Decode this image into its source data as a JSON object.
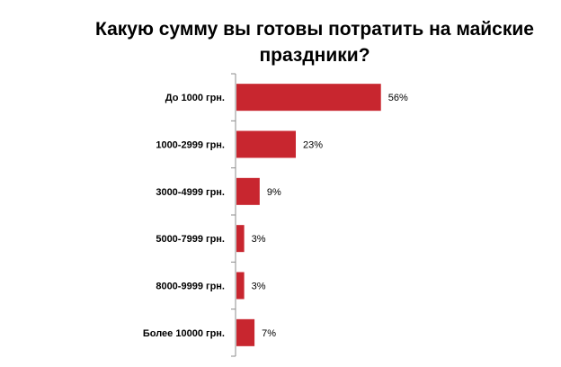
{
  "chart_data": {
    "type": "bar",
    "orientation": "horizontal",
    "title": "Какую сумму вы готовы потратить на майские праздники?",
    "categories": [
      "До 1000 грн.",
      "1000-2999 грн.",
      "3000-4999 грн.",
      "5000-7999 грн.",
      "8000-9999 грн.",
      "Более 10000 грн."
    ],
    "values": [
      56,
      23,
      9,
      3,
      3,
      7
    ],
    "data_labels": [
      "56%",
      "23%",
      "9%",
      "3%",
      "3%",
      "7%"
    ],
    "xlim": [
      0,
      100
    ],
    "bar_color": "#C8262F",
    "grid": false,
    "legend": "none"
  }
}
